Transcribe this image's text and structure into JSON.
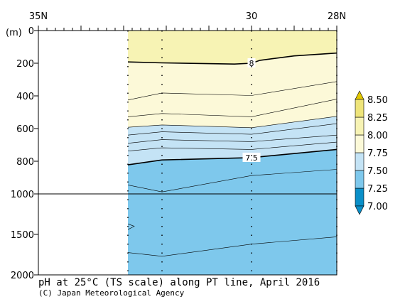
{
  "chart_data": {
    "type": "contour",
    "title": "pH at 25°C (TS scale) along PT line, April 2016",
    "credit": "(C) Japan Meteorological Agency",
    "y_unit_label": "(m)",
    "x_tick_labels": [
      {
        "lat": 35,
        "label": "35N"
      },
      {
        "lat": 30,
        "label": "30"
      },
      {
        "lat": 28,
        "label": "28N"
      }
    ],
    "x_range": [
      35,
      28
    ],
    "y_upper": {
      "range": [
        0,
        1000
      ],
      "ticks": [
        0,
        200,
        400,
        600,
        800,
        1000
      ]
    },
    "y_lower": {
      "range": [
        1000,
        2000
      ],
      "ticks": [
        1500,
        2000
      ]
    },
    "station_lats": [
      32.9,
      32.1,
      30.0,
      28.0
    ],
    "data_start_lat": 32.9,
    "fill_levels": [
      7.0,
      7.25,
      7.5,
      7.75,
      8.0,
      8.25,
      8.5
    ],
    "fill_colors": [
      "#0a8fc8",
      "#7ec8ec",
      "#c4e3f5",
      "#fcf9d8",
      "#f7f3b4",
      "#eee47a",
      "#e3c800"
    ],
    "contours": [
      {
        "level": 8.0,
        "label": "8",
        "bold": true,
        "label_lat": 30.0,
        "points": [
          [
            32.9,
            192
          ],
          [
            32.1,
            198
          ],
          [
            30.4,
            205
          ],
          [
            30.0,
            200
          ],
          [
            29.8,
            182
          ],
          [
            29.0,
            155
          ],
          [
            28.0,
            138
          ]
        ]
      },
      {
        "level": 7.95,
        "bold": false,
        "points": [
          [
            32.9,
            425
          ],
          [
            32.1,
            382
          ],
          [
            30.0,
            398
          ],
          [
            28.0,
            312
          ]
        ]
      },
      {
        "level": 7.85,
        "bold": false,
        "points": [
          [
            32.9,
            528
          ],
          [
            32.1,
            508
          ],
          [
            30.0,
            528
          ],
          [
            28.0,
            420
          ]
        ]
      },
      {
        "level": 7.75,
        "bold": false,
        "is_fill_boundary": true,
        "points": [
          [
            32.9,
            592
          ],
          [
            32.1,
            578
          ],
          [
            30.0,
            595
          ],
          [
            28.0,
            525
          ]
        ]
      },
      {
        "level": 7.7,
        "bold": false,
        "points": [
          [
            32.9,
            640
          ],
          [
            32.1,
            620
          ],
          [
            30.0,
            635
          ],
          [
            28.0,
            570
          ]
        ]
      },
      {
        "level": 7.65,
        "bold": false,
        "points": [
          [
            32.9,
            690
          ],
          [
            32.1,
            668
          ],
          [
            30.0,
            680
          ],
          [
            28.0,
            640
          ]
        ]
      },
      {
        "level": 7.6,
        "bold": false,
        "points": [
          [
            32.9,
            738
          ],
          [
            32.1,
            718
          ],
          [
            30.0,
            728
          ],
          [
            28.0,
            683
          ]
        ]
      },
      {
        "level": 7.5,
        "label": "7.5",
        "bold": true,
        "label_lat": 30.0,
        "is_fill_boundary": true,
        "points": [
          [
            32.9,
            822
          ],
          [
            32.1,
            792
          ],
          [
            30.0,
            778
          ],
          [
            28.0,
            728
          ]
        ]
      },
      {
        "level": 7.45,
        "bold": false,
        "points": [
          [
            32.9,
            945
          ],
          [
            32.1,
            988
          ],
          [
            30.0,
            888
          ],
          [
            28.0,
            850
          ]
        ]
      },
      {
        "level": 7.4,
        "bold": false,
        "points": [
          [
            32.9,
            1440
          ],
          [
            32.75,
            1400
          ],
          [
            32.9,
            1370
          ]
        ]
      },
      {
        "level": 7.35,
        "bold": false,
        "points": [
          [
            32.9,
            1725
          ],
          [
            32.1,
            1770
          ],
          [
            30.0,
            1620
          ],
          [
            28.0,
            1530
          ]
        ]
      }
    ]
  }
}
